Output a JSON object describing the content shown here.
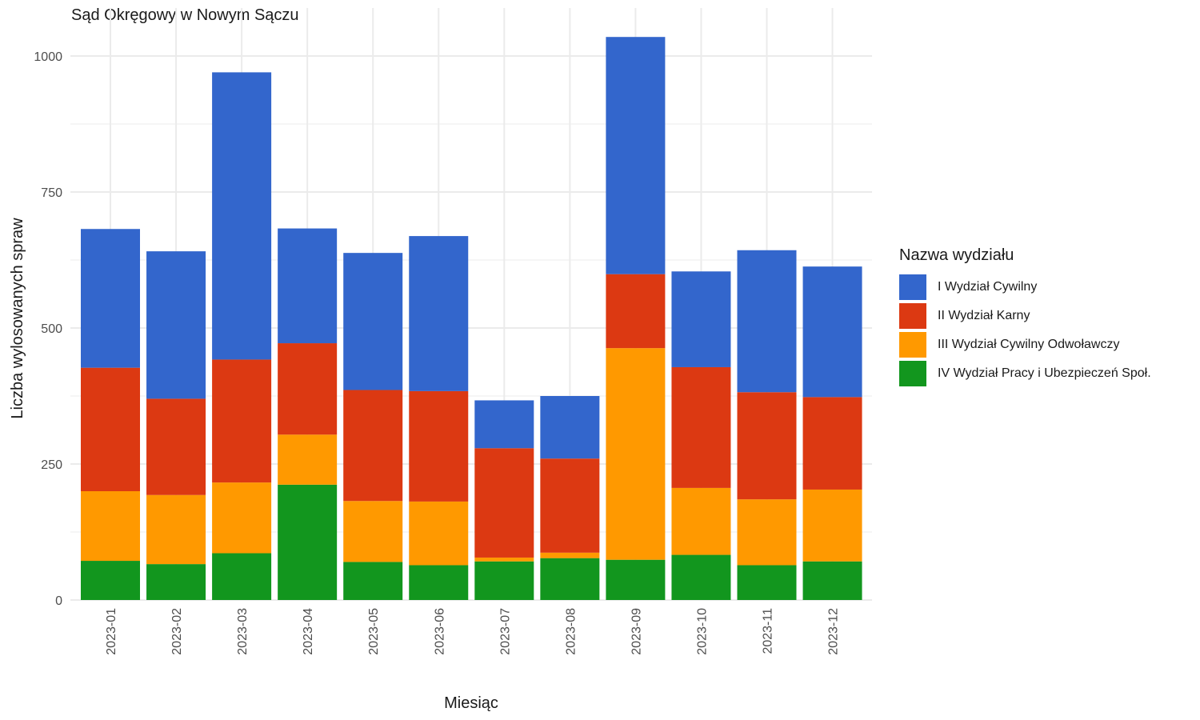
{
  "chart_data": {
    "type": "bar",
    "stacked": true,
    "title": "Sąd Okręgowy w Nowym Sączu",
    "xlabel": "Miesiąc",
    "ylabel": "Liczba wylosowanych spraw",
    "ylim": [
      0,
      1050
    ],
    "yticks": [
      0,
      250,
      500,
      750,
      1000
    ],
    "grid": true,
    "legend_title": "Nazwa wydziału",
    "legend_position": "right",
    "categories": [
      "2023-01",
      "2023-02",
      "2023-03",
      "2023-04",
      "2023-05",
      "2023-06",
      "2023-07",
      "2023-08",
      "2023-09",
      "2023-10",
      "2023-11",
      "2023-12"
    ],
    "series": [
      {
        "name": "IV Wydział Pracy i Ubezpieczeń Społ.",
        "color": "#12961e",
        "values": [
          72,
          66,
          86,
          212,
          70,
          64,
          71,
          77,
          74,
          83,
          64,
          71
        ]
      },
      {
        "name": "III Wydział Cywilny Odwoławczy",
        "color": "#ff9900",
        "values": [
          128,
          127,
          130,
          92,
          112,
          117,
          7,
          10,
          389,
          123,
          121,
          132
        ]
      },
      {
        "name": "II Wydział Karny",
        "color": "#dc3912",
        "values": [
          227,
          177,
          226,
          168,
          204,
          203,
          201,
          173,
          136,
          222,
          197,
          170
        ]
      },
      {
        "name": "I Wydział Cywilny",
        "color": "#3366cc",
        "values": [
          255,
          271,
          528,
          211,
          252,
          285,
          88,
          115,
          436,
          176,
          261,
          240
        ]
      }
    ],
    "legend_order": [
      "I Wydział Cywilny",
      "II Wydział Karny",
      "III Wydział Cywilny Odwoławczy",
      "IV Wydział Pracy i Ubezpieczeń Społ."
    ]
  }
}
